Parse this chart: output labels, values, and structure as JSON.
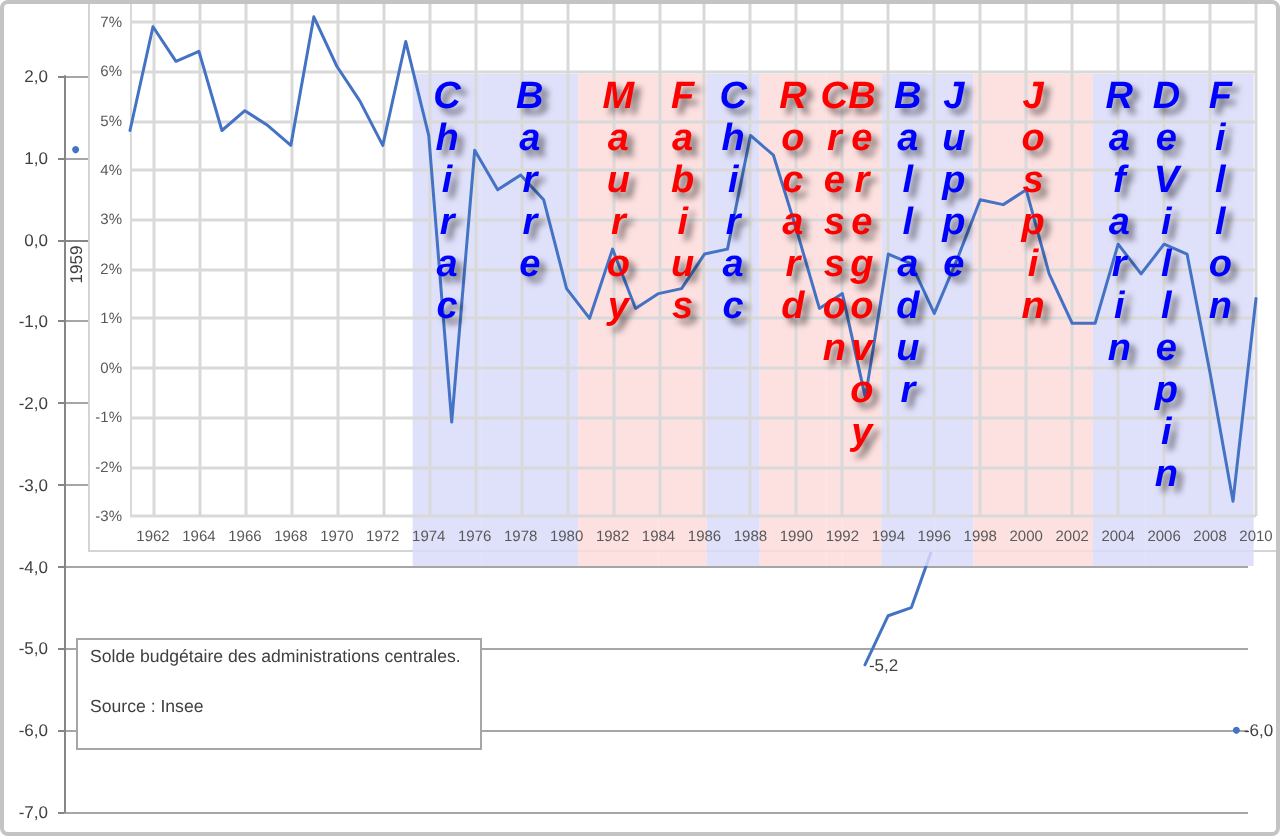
{
  "chart_data": [
    {
      "type": "line",
      "categories": [
        "1959",
        null,
        null,
        null,
        null,
        null,
        null,
        null,
        null,
        null,
        null,
        null,
        null,
        null,
        null,
        null,
        null,
        null,
        null,
        null,
        null,
        null,
        null,
        null,
        null,
        null,
        null,
        null,
        null,
        null,
        null,
        null,
        null,
        null,
        null,
        null,
        null,
        null,
        null,
        null,
        null,
        null,
        null,
        null,
        null,
        null,
        null,
        null,
        null,
        null,
        null
      ],
      "values": [
        1.1,
        null,
        null,
        null,
        null,
        null,
        null,
        null,
        null,
        null,
        null,
        null,
        null,
        null,
        null,
        null,
        null,
        null,
        null,
        null,
        null,
        null,
        null,
        null,
        null,
        null,
        null,
        null,
        null,
        null,
        null,
        null,
        null,
        null,
        -5.2,
        -4.6,
        -4.5,
        -3.7,
        null,
        null,
        null,
        null,
        null,
        null,
        null,
        null,
        null,
        null,
        null,
        null,
        -6.0
      ],
      "value_labels": [
        null,
        null,
        null,
        null,
        null,
        null,
        null,
        null,
        null,
        null,
        null,
        null,
        null,
        null,
        null,
        null,
        null,
        null,
        null,
        null,
        null,
        null,
        null,
        null,
        null,
        null,
        null,
        null,
        null,
        null,
        null,
        null,
        null,
        null,
        "-5,2",
        null,
        null,
        null,
        null,
        null,
        null,
        null,
        null,
        null,
        null,
        null,
        null,
        null,
        null,
        null,
        "-6,0"
      ],
      "color": "#4472c4",
      "ylim": [
        -7,
        2
      ],
      "yticks": [
        {
          "value": -7,
          "label": "-7,0"
        },
        {
          "value": -6,
          "label": "-6,0"
        },
        {
          "value": -5,
          "label": "-5,0"
        },
        {
          "value": -4,
          "label": "-4,0"
        },
        {
          "value": -3,
          "label": "-3,0"
        },
        {
          "value": -2,
          "label": "-2,0"
        },
        {
          "value": -1,
          "label": "-1,0"
        },
        {
          "value": 0,
          "label": "0,0"
        },
        {
          "value": 1,
          "label": "1,0"
        },
        {
          "value": 2,
          "label": "2,0"
        }
      ],
      "grid": "y",
      "annotations": [
        "Solde budgétaire des administrations centrales.",
        "Source : Insee"
      ]
    },
    {
      "type": "line",
      "x": [
        1961,
        1962,
        1963,
        1964,
        1965,
        1966,
        1967,
        1968,
        1969,
        1970,
        1971,
        1972,
        1973,
        1974,
        1975,
        1976,
        1977,
        1978,
        1979,
        1980,
        1981,
        1982,
        1983,
        1984,
        1985,
        1986,
        1987,
        1988,
        1989,
        1990,
        1991,
        1992,
        1993,
        1994,
        1995,
        1996,
        1997,
        1998,
        1999,
        2000,
        2001,
        2002,
        2003,
        2004,
        2005,
        2006,
        2007,
        2008,
        2009,
        2010
      ],
      "values": [
        4.8,
        6.9,
        6.2,
        6.4,
        4.8,
        5.2,
        4.9,
        4.5,
        7.1,
        6.1,
        5.4,
        4.5,
        6.6,
        4.7,
        -1.1,
        4.4,
        3.6,
        3.9,
        3.4,
        1.6,
        1.0,
        2.4,
        1.2,
        1.5,
        1.6,
        2.3,
        2.4,
        4.7,
        4.3,
        2.8,
        1.2,
        1.5,
        -0.6,
        2.3,
        2.1,
        1.1,
        2.2,
        3.4,
        3.3,
        3.6,
        1.9,
        0.9,
        0.9,
        2.5,
        1.9,
        2.5,
        2.3,
        -0.1,
        -2.7,
        1.4
      ],
      "color": "#4472c4",
      "xlim": [
        1961,
        2010
      ],
      "xticks": [
        1962,
        1964,
        1966,
        1968,
        1970,
        1972,
        1974,
        1976,
        1978,
        1980,
        1982,
        1984,
        1986,
        1988,
        1990,
        1992,
        1994,
        1996,
        1998,
        2000,
        2002,
        2004,
        2006,
        2008,
        2010
      ],
      "ylim": [
        -3,
        7.4
      ],
      "yticks": [
        {
          "value": -3,
          "label": "-3%"
        },
        {
          "value": -2,
          "label": "-2%"
        },
        {
          "value": -1,
          "label": "-1%"
        },
        {
          "value": 0,
          "label": "0%"
        },
        {
          "value": 1,
          "label": "1%"
        },
        {
          "value": 2,
          "label": "2%"
        },
        {
          "value": 3,
          "label": "3%"
        },
        {
          "value": 4,
          "label": "4%"
        },
        {
          "value": 5,
          "label": "5%"
        },
        {
          "value": 6,
          "label": "6%"
        },
        {
          "value": 7,
          "label": "7%"
        }
      ],
      "grid": true,
      "bands": [
        {
          "axis": "x",
          "from": 1973.3,
          "to": 1976.3,
          "label": "Chirac",
          "color": "#d9dbf9"
        },
        {
          "axis": "x",
          "from": 1976.3,
          "to": 1980.5,
          "label": "Barre",
          "color": "#d9dbf9"
        },
        {
          "axis": "x",
          "from": 1980.5,
          "to": 1984.0,
          "label": "Mauroy",
          "color": "#fddbdb"
        },
        {
          "axis": "x",
          "from": 1984.0,
          "to": 1986.1,
          "label": "Fabius",
          "color": "#fddbdb"
        },
        {
          "axis": "x",
          "from": 1986.1,
          "to": 1988.4,
          "label": "Chirac",
          "color": "#d9dbf9"
        },
        {
          "axis": "x",
          "from": 1988.4,
          "to": 1991.3,
          "label": "Rocard",
          "color": "#fddbdb"
        },
        {
          "axis": "x",
          "from": 1991.3,
          "to": 1992.0,
          "label": "Cresson",
          "color": "#fddbdb"
        },
        {
          "axis": "x",
          "from": 1992.0,
          "to": 1993.7,
          "label": "Beregovoy",
          "color": "#fddbdb"
        },
        {
          "axis": "x",
          "from": 1993.7,
          "to": 1996.0,
          "label": "Balladur",
          "color": "#d9dbf9"
        },
        {
          "axis": "x",
          "from": 1996.0,
          "to": 1997.7,
          "label": "Juppe",
          "color": "#d9dbf9"
        },
        {
          "axis": "x",
          "from": 1997.7,
          "to": 2002.9,
          "label": "Jospin",
          "color": "#fddbdb"
        },
        {
          "axis": "x",
          "from": 2002.9,
          "to": 2005.2,
          "label": "Rafarin",
          "color": "#d9dbf9"
        },
        {
          "axis": "x",
          "from": 2005.2,
          "to": 2007.0,
          "label": "DeVillepin",
          "color": "#d9dbf9"
        },
        {
          "axis": "x",
          "from": 2007.0,
          "to": 2009.9,
          "label": "Fillon",
          "color": "#d9dbf9"
        }
      ]
    }
  ]
}
